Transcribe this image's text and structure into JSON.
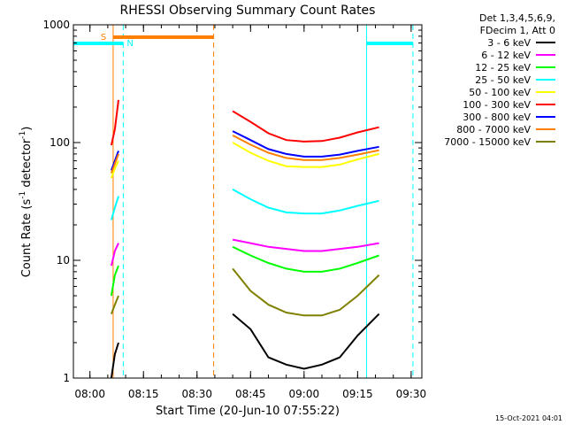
{
  "chart_data": {
    "type": "line",
    "title": "RHESSI Observing Summary Count Rates",
    "xlabel": "Start Time (20-Jun-10 07:55:22)",
    "ylabel_main": "Count Rate (s",
    "ylabel_sup1": "-1",
    "ylabel_mid": " detector",
    "ylabel_sup2": "-1",
    "ylabel_end": ")",
    "y_scale": "log",
    "ylim": [
      1,
      1000
    ],
    "xlim": [
      "07:55:22",
      "09:33:00"
    ],
    "x_ticks": [
      "08:00",
      "08:15",
      "08:30",
      "08:45",
      "09:00",
      "09:15",
      "09:30"
    ],
    "y_ticks": [
      "1",
      "10",
      "100",
      "1000"
    ],
    "grid": false,
    "legend_position": "right",
    "legend_header": [
      "Det 1,3,4,5,6,9,",
      "FDecim 1, Att 0"
    ],
    "footer_date": "15-Oct-2021 04:01",
    "flags": [
      {
        "label": "S",
        "color": "#ff8000",
        "start": "08:06:30",
        "end": "08:34:40"
      },
      {
        "label": "N",
        "color": "#00ffff",
        "start": "07:55:22",
        "end": "08:09:20"
      },
      {
        "label": "",
        "color": "#00ffff",
        "start": "09:17:30",
        "end": "09:30:30"
      }
    ],
    "vertical_markers": [
      {
        "time": "08:06:30",
        "color": "#ff8000",
        "style": "solid"
      },
      {
        "time": "08:34:40",
        "color": "#ff8000",
        "style": "dashed"
      },
      {
        "time": "07:55:22",
        "color": "#00ffff",
        "style": "solid"
      },
      {
        "time": "08:09:20",
        "color": "#00ffff",
        "style": "dashed"
      },
      {
        "time": "09:17:30",
        "color": "#00ffff",
        "style": "solid"
      },
      {
        "time": "09:30:30",
        "color": "#00ffff",
        "style": "dashed"
      }
    ],
    "time_axis_points": [
      "08:06",
      "08:07",
      "08:08",
      "08:40",
      "08:45",
      "08:50",
      "08:55",
      "09:00",
      "09:05",
      "09:10",
      "09:15",
      "09:21"
    ],
    "series": [
      {
        "name": "3 - 6 keV",
        "color": "#000000",
        "values": [
          1.0,
          1.6,
          2.0,
          3.5,
          2.6,
          1.5,
          1.3,
          1.2,
          1.3,
          1.5,
          2.3,
          3.5
        ]
      },
      {
        "name": "6 - 12 keV",
        "color": "#ff00ff",
        "values": [
          9.0,
          12.0,
          14.0,
          15.0,
          14.0,
          13.0,
          12.5,
          12.0,
          12.0,
          12.5,
          13.0,
          14.0
        ]
      },
      {
        "name": "12 - 25 keV",
        "color": "#00ff00",
        "values": [
          5.0,
          7.5,
          9.0,
          13.0,
          11.0,
          9.5,
          8.5,
          8.0,
          8.0,
          8.5,
          9.5,
          11.0
        ]
      },
      {
        "name": "25 - 50 keV",
        "color": "#00ffff",
        "values": [
          22.0,
          28.0,
          35.0,
          40.0,
          33.0,
          28.0,
          25.5,
          25.0,
          25.0,
          26.5,
          29.0,
          32.0
        ]
      },
      {
        "name": "50 - 100 keV",
        "color": "#ffff00",
        "values": [
          50.0,
          60.0,
          70.0,
          100.0,
          82.0,
          70.0,
          63.0,
          62.0,
          62.0,
          65.0,
          72.0,
          80.0
        ]
      },
      {
        "name": "100 - 300 keV",
        "color": "#ff0000",
        "values": [
          95.0,
          130.0,
          230.0,
          185.0,
          150.0,
          120.0,
          105.0,
          102.0,
          103.0,
          110.0,
          122.0,
          135.0
        ]
      },
      {
        "name": "300 - 800 keV",
        "color": "#0000ff",
        "values": [
          58.0,
          70.0,
          85.0,
          125.0,
          105.0,
          88.0,
          80.0,
          76.0,
          76.0,
          79.0,
          85.0,
          92.0
        ]
      },
      {
        "name": "800 - 7000 keV",
        "color": "#ff8000",
        "values": [
          55.0,
          66.0,
          80.0,
          115.0,
          96.0,
          82.0,
          74.0,
          71.0,
          71.0,
          74.0,
          79.0,
          86.0
        ]
      },
      {
        "name": "7000 - 15000 keV",
        "color": "#808000",
        "values": [
          3.5,
          4.2,
          5.0,
          8.5,
          5.5,
          4.2,
          3.6,
          3.4,
          3.4,
          3.8,
          5.0,
          7.5
        ]
      }
    ]
  }
}
